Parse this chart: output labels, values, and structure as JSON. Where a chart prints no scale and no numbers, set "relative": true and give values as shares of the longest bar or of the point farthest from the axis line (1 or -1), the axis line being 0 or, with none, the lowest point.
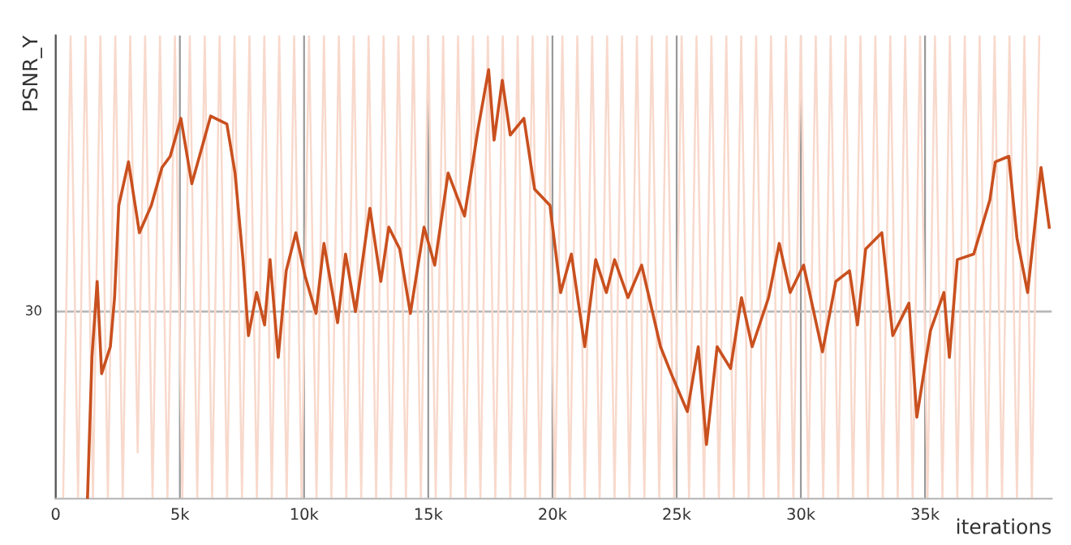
{
  "chart_data": {
    "type": "line",
    "relative": true,
    "ylabel": "PSNR_Y",
    "xlabel": "iterations",
    "xlim": [
      0,
      40100
    ],
    "xticks": [
      0,
      {
        "value": 5000,
        "label": "5k"
      },
      {
        "value": 10000,
        "label": "10k"
      },
      {
        "value": 15000,
        "label": "15k"
      },
      {
        "value": 20000,
        "label": "20k"
      },
      {
        "value": 25000,
        "label": "25k"
      },
      {
        "value": 30000,
        "label": "30k"
      },
      {
        "value": 35000,
        "label": "35k"
      }
    ],
    "grid": "x",
    "ref_lines": [
      {
        "axis": "y",
        "value": 0.404,
        "color": "#b8b8b8"
      }
    ],
    "annotations": [
      "30"
    ],
    "series": [
      {
        "color": "#f8d9cc",
        "x": [
          300,
          600,
          900,
          1200,
          1500,
          1800,
          2100,
          2400,
          2700,
          3000,
          3300,
          3600,
          3900,
          4200,
          4500,
          4800,
          5100,
          5400,
          5700,
          6000,
          6300,
          6600,
          6900,
          7200,
          7500,
          7800,
          8100,
          8400,
          8700,
          9000,
          9300,
          9600,
          9900,
          10200,
          10500,
          10800,
          11100,
          11400,
          11700,
          12000,
          12300,
          12600,
          12900,
          13200,
          13500,
          13800,
          14100,
          14400,
          14700,
          15000,
          15300,
          15600,
          15900,
          16200,
          16500,
          16800,
          17100,
          17400,
          17700,
          18000,
          18300,
          18600,
          18900,
          19200,
          19500,
          19800,
          20100,
          20400,
          20700,
          21000,
          21300,
          21600,
          21900,
          22200,
          22500,
          22800,
          23100,
          23400,
          23700,
          24000,
          24300,
          24600,
          24900,
          25200,
          25500,
          25800,
          26100,
          26400,
          26700,
          27000,
          27300,
          27600,
          27900,
          28200,
          28500,
          28800,
          29100,
          29400,
          29700,
          30000,
          30300,
          30600,
          30900,
          31200,
          31500,
          31800,
          32100,
          32400,
          32700,
          33000,
          33300,
          33600,
          33900,
          34200,
          34500,
          34800,
          35100,
          35400,
          35700,
          36000,
          36300,
          36600,
          36900,
          37200,
          37500,
          37800,
          38100,
          38400,
          38700,
          39000,
          39300,
          39600
        ],
        "values": [
          0,
          1,
          0,
          1,
          0,
          1,
          0,
          1,
          0,
          1,
          0.1,
          1,
          0,
          1,
          0,
          1,
          0,
          1,
          0,
          1,
          0,
          1,
          0,
          1,
          0,
          1,
          0,
          1,
          0,
          1,
          0,
          1,
          0,
          1,
          0,
          1,
          0,
          1,
          0,
          1,
          0,
          1,
          0,
          1,
          0,
          1,
          0,
          1,
          0,
          1,
          0,
          1,
          0,
          1,
          0,
          1,
          0,
          1,
          0,
          1,
          0,
          1,
          0,
          1,
          0,
          1,
          0,
          1,
          0,
          1,
          0,
          1,
          0,
          1,
          0,
          1,
          0,
          1,
          0,
          1,
          0,
          1,
          0,
          1,
          0,
          1,
          0,
          1,
          0,
          1,
          0,
          1,
          0,
          1,
          0,
          1,
          0,
          1,
          0,
          1,
          0,
          1,
          0,
          1,
          0,
          1,
          0,
          1,
          0,
          1,
          0,
          1,
          0,
          1,
          0,
          1,
          0,
          1,
          0,
          1,
          0,
          1,
          0,
          1,
          0,
          1,
          0,
          1,
          0,
          1,
          0,
          1
        ]
      },
      {
        "color": "#c9501f",
        "x": [
          1280,
          1460,
          1670,
          1850,
          2200,
          2370,
          2540,
          2930,
          3370,
          3850,
          4280,
          4610,
          5040,
          5480,
          6240,
          6890,
          7220,
          7540,
          7760,
          8090,
          8410,
          8630,
          8960,
          9280,
          9670,
          10040,
          10480,
          10800,
          11350,
          11670,
          12070,
          12650,
          13090,
          13410,
          13850,
          14280,
          14830,
          15260,
          15800,
          16460,
          17000,
          17430,
          17650,
          17980,
          18300,
          18850,
          19280,
          19900,
          20330,
          20760,
          21300,
          21740,
          22170,
          22500,
          23040,
          23590,
          24350,
          24780,
          25430,
          25870,
          26200,
          26630,
          27170,
          27610,
          28040,
          28700,
          29130,
          29570,
          30110,
          30870,
          31410,
          31960,
          32280,
          32610,
          33260,
          33700,
          34350,
          34670,
          35220,
          35760,
          35980,
          36300,
          36960,
          37610,
          37830,
          38370,
          38700,
          39130,
          39670,
          40000
        ],
        "values": [
          0,
          0.305,
          0.469,
          0.27,
          0.328,
          0.434,
          0.633,
          0.727,
          0.574,
          0.633,
          0.715,
          0.739,
          0.821,
          0.68,
          0.826,
          0.809,
          0.703,
          0.516,
          0.352,
          0.445,
          0.375,
          0.516,
          0.305,
          0.492,
          0.574,
          0.481,
          0.4,
          0.551,
          0.38,
          0.528,
          0.404,
          0.627,
          0.469,
          0.586,
          0.539,
          0.4,
          0.586,
          0.504,
          0.703,
          0.61,
          0.797,
          0.926,
          0.774,
          0.903,
          0.785,
          0.821,
          0.668,
          0.633,
          0.445,
          0.528,
          0.328,
          0.516,
          0.445,
          0.516,
          0.434,
          0.504,
          0.328,
          0.27,
          0.188,
          0.328,
          0.117,
          0.328,
          0.281,
          0.434,
          0.328,
          0.434,
          0.551,
          0.445,
          0.504,
          0.317,
          0.469,
          0.492,
          0.375,
          0.539,
          0.574,
          0.352,
          0.422,
          0.176,
          0.363,
          0.445,
          0.305,
          0.516,
          0.528,
          0.645,
          0.727,
          0.739,
          0.563,
          0.445,
          0.715,
          0.586
        ]
      }
    ]
  }
}
